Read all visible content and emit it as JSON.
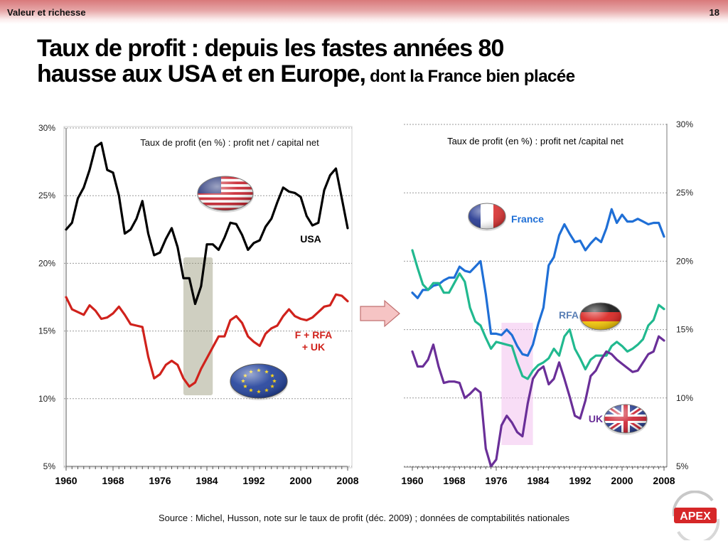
{
  "header": {
    "section": "Valeur et richesse",
    "page": "18"
  },
  "title": {
    "line1": "Taux de profit : depuis les fastes années 80",
    "line2": "hausse aux USA et en Europe,",
    "line2_sub": " dont la France bien placée"
  },
  "source": "Source : Michel, Husson, note sur le taux de profit (déc. 2009) ; données de comptabilités nationales",
  "logo": {
    "text": "APEX"
  },
  "colors": {
    "usa": "#000000",
    "europe": "#d0221c",
    "france": "#1f6fd6",
    "rfa": "#21b98f",
    "uk": "#6a2f98"
  },
  "chart_data": [
    {
      "type": "line",
      "title": "Taux de profit (en %) : profit net / capital net",
      "xlim": [
        1960,
        2008
      ],
      "ylim": [
        5,
        30
      ],
      "xticks": [
        "1960",
        "1968",
        "1976",
        "1984",
        "1992",
        "2000",
        "2008"
      ],
      "yticks": [
        "5%",
        "10%",
        "15%",
        "20%",
        "25%",
        "30%"
      ],
      "grid": true,
      "highlight": {
        "x": [
          1980,
          1985
        ]
      },
      "x": [
        1960,
        1961,
        1962,
        1963,
        1964,
        1965,
        1966,
        1967,
        1968,
        1969,
        1970,
        1971,
        1972,
        1973,
        1974,
        1975,
        1976,
        1977,
        1978,
        1979,
        1980,
        1981,
        1982,
        1983,
        1984,
        1985,
        1986,
        1987,
        1988,
        1989,
        1990,
        1991,
        1992,
        1993,
        1994,
        1995,
        1996,
        1997,
        1998,
        1999,
        2000,
        2001,
        2002,
        2003,
        2004,
        2005,
        2006,
        2007,
        2008
      ],
      "series": [
        {
          "name": "USA",
          "color": "#000000",
          "values": [
            22.5,
            23.0,
            24.8,
            25.6,
            26.9,
            28.6,
            28.9,
            26.9,
            26.7,
            25.0,
            22.2,
            22.5,
            23.3,
            24.6,
            22.2,
            20.6,
            20.8,
            21.8,
            22.6,
            21.2,
            18.9,
            18.9,
            17.0,
            18.3,
            21.4,
            21.4,
            21.0,
            21.9,
            23.0,
            22.9,
            22.1,
            21.0,
            21.5,
            21.7,
            22.7,
            23.3,
            24.5,
            25.6,
            25.3,
            25.2,
            24.9,
            23.5,
            22.8,
            23.0,
            25.4,
            26.5,
            27.0,
            24.8,
            22.6
          ]
        },
        {
          "name": "F + RFA\n+ UK",
          "color": "#d0221c",
          "values": [
            17.5,
            16.6,
            16.4,
            16.2,
            16.9,
            16.5,
            15.9,
            16.0,
            16.3,
            16.8,
            16.2,
            15.5,
            15.4,
            15.3,
            13.1,
            11.5,
            11.8,
            12.5,
            12.8,
            12.5,
            11.5,
            10.9,
            11.2,
            12.2,
            13.0,
            13.8,
            14.6,
            14.6,
            15.8,
            16.1,
            15.6,
            14.6,
            14.2,
            13.9,
            14.8,
            15.2,
            15.4,
            16.1,
            16.6,
            16.1,
            15.9,
            15.8,
            16.0,
            16.4,
            16.8,
            16.9,
            17.7,
            17.6,
            17.2
          ]
        }
      ]
    },
    {
      "type": "line",
      "title": "Taux de profit  (en %) : profit net /capital net",
      "xlim": [
        1960,
        2008
      ],
      "ylim": [
        5,
        30
      ],
      "xticks": [
        "1960",
        "1968",
        "1976",
        "1984",
        "1992",
        "2000",
        "2008"
      ],
      "yticks": [
        "5%",
        "10%",
        "15%",
        "20%",
        "25%",
        "30%"
      ],
      "grid": true,
      "highlight": {
        "x": [
          1977,
          1983
        ]
      },
      "x": [
        1960,
        1961,
        1962,
        1963,
        1964,
        1965,
        1966,
        1967,
        1968,
        1969,
        1970,
        1971,
        1972,
        1973,
        1974,
        1975,
        1976,
        1977,
        1978,
        1979,
        1980,
        1981,
        1982,
        1983,
        1984,
        1985,
        1986,
        1987,
        1988,
        1989,
        1990,
        1991,
        1992,
        1993,
        1994,
        1995,
        1996,
        1997,
        1998,
        1999,
        2000,
        2001,
        2002,
        2003,
        2004,
        2005,
        2006,
        2007,
        2008
      ],
      "series": [
        {
          "name": "France",
          "color": "#1f6fd6",
          "values": [
            17.7,
            17.3,
            17.9,
            17.9,
            18.2,
            18.3,
            18.6,
            18.8,
            18.8,
            19.6,
            19.3,
            19.2,
            19.6,
            20.0,
            17.6,
            14.7,
            14.7,
            14.6,
            15.0,
            14.6,
            13.8,
            13.2,
            13.1,
            13.9,
            15.4,
            16.6,
            19.7,
            20.3,
            21.9,
            22.7,
            22.0,
            21.4,
            21.5,
            20.8,
            21.3,
            21.7,
            21.4,
            22.4,
            23.8,
            22.8,
            23.4,
            22.9,
            22.9,
            23.1,
            22.9,
            22.7,
            22.8,
            22.8,
            21.8
          ]
        },
        {
          "name": "RFA",
          "color": "#21b98f",
          "values": [
            20.8,
            19.5,
            18.3,
            17.9,
            18.4,
            18.4,
            17.7,
            17.7,
            18.4,
            19.1,
            18.5,
            16.6,
            15.6,
            15.3,
            14.4,
            13.6,
            14.1,
            14.0,
            13.9,
            13.8,
            12.6,
            11.6,
            11.4,
            12.0,
            12.4,
            12.6,
            12.9,
            13.6,
            13.1,
            14.5,
            15.0,
            13.6,
            12.9,
            12.1,
            12.8,
            13.1,
            13.1,
            13.1,
            13.8,
            14.1,
            13.8,
            13.4,
            13.6,
            13.9,
            14.3,
            15.3,
            15.7,
            16.8,
            16.5
          ]
        },
        {
          "name": "UK",
          "color": "#6a2f98",
          "values": [
            13.4,
            12.3,
            12.3,
            12.8,
            13.9,
            12.3,
            11.1,
            11.2,
            11.2,
            11.1,
            10.0,
            10.3,
            10.7,
            10.4,
            6.3,
            5.0,
            5.5,
            8.0,
            8.7,
            8.2,
            7.5,
            7.2,
            9.6,
            11.4,
            12.0,
            12.3,
            11.0,
            11.4,
            12.6,
            11.4,
            10.1,
            8.7,
            8.5,
            9.8,
            11.6,
            12.0,
            12.8,
            13.4,
            13.2,
            12.8,
            12.5,
            12.2,
            11.9,
            12.0,
            12.6,
            13.2,
            13.4,
            14.5,
            14.2
          ]
        }
      ]
    }
  ]
}
